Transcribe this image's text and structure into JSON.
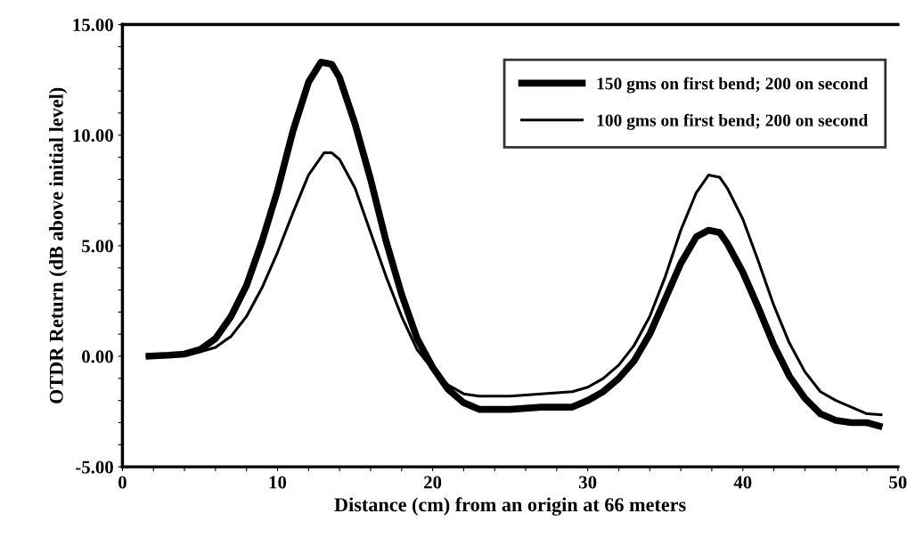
{
  "chart_data": {
    "type": "line",
    "xlabel": "Distance (cm) from an origin at 66 meters",
    "ylabel": "OTDR Return (dB above initial level)",
    "xlim": [
      0,
      50
    ],
    "ylim": [
      -5,
      15
    ],
    "xticks": [
      0,
      {
        "value": 2,
        "label": null
      },
      {
        "value": 4,
        "label": null
      },
      {
        "value": 6,
        "label": null
      },
      {
        "value": 8,
        "label": null
      },
      10,
      {
        "value": 12,
        "label": null
      },
      {
        "value": 14,
        "label": null
      },
      {
        "value": 16,
        "label": null
      },
      {
        "value": 18,
        "label": null
      },
      20,
      {
        "value": 22,
        "label": null
      },
      {
        "value": 24,
        "label": null
      },
      {
        "value": 26,
        "label": null
      },
      {
        "value": 28,
        "label": null
      },
      30,
      {
        "value": 32,
        "label": null
      },
      {
        "value": 34,
        "label": null
      },
      {
        "value": 36,
        "label": null
      },
      {
        "value": 38,
        "label": null
      },
      40,
      {
        "value": 42,
        "label": null
      },
      {
        "value": 44,
        "label": null
      },
      {
        "value": 46,
        "label": null
      },
      {
        "value": 48,
        "label": null
      },
      50
    ],
    "yticks": [
      {
        "value": -5,
        "label": "-5.00"
      },
      {
        "value": -4,
        "label": null
      },
      {
        "value": -3,
        "label": null
      },
      {
        "value": -2,
        "label": null
      },
      {
        "value": -1,
        "label": null
      },
      {
        "value": 0,
        "label": "0.00"
      },
      {
        "value": 1,
        "label": null
      },
      {
        "value": 2,
        "label": null
      },
      {
        "value": 3,
        "label": null
      },
      {
        "value": 4,
        "label": null
      },
      {
        "value": 5,
        "label": "5.00"
      },
      {
        "value": 6,
        "label": null
      },
      {
        "value": 7,
        "label": null
      },
      {
        "value": 8,
        "label": null
      },
      {
        "value": 9,
        "label": null
      },
      {
        "value": 10,
        "label": "10.00"
      },
      {
        "value": 11,
        "label": null
      },
      {
        "value": 12,
        "label": null
      },
      {
        "value": 13,
        "label": null
      },
      {
        "value": 14,
        "label": null
      },
      {
        "value": 15,
        "label": "15.00"
      }
    ],
    "grid": false,
    "legend": "top right",
    "marker": "none",
    "line_style": "solid",
    "series": [
      {
        "name": "150 gms on first bend; 200 on second",
        "color": "#000000",
        "x": [
          1.5,
          3,
          4,
          5,
          6,
          7,
          8,
          9,
          10,
          11,
          12,
          12.8,
          13.5,
          14,
          15,
          16,
          17,
          18,
          19,
          20,
          21,
          22,
          23,
          25,
          27,
          29,
          30,
          31,
          32,
          33,
          34,
          35,
          36,
          37,
          37.8,
          38.5,
          39,
          40,
          41,
          42,
          43,
          44,
          45,
          46,
          47,
          48,
          48.5,
          49
        ],
        "values": [
          0,
          0.05,
          0.1,
          0.3,
          0.8,
          1.8,
          3.2,
          5.2,
          7.5,
          10.2,
          12.4,
          13.3,
          13.2,
          12.6,
          10.5,
          8,
          5.2,
          2.8,
          0.8,
          -0.5,
          -1.5,
          -2.1,
          -2.4,
          -2.4,
          -2.3,
          -2.3,
          -2,
          -1.6,
          -1,
          -0.2,
          1,
          2.6,
          4.2,
          5.4,
          5.7,
          5.6,
          5.1,
          3.8,
          2.2,
          0.5,
          -0.9,
          -1.9,
          -2.6,
          -2.9,
          -3,
          -3,
          -3.1,
          -3.2
        ]
      },
      {
        "name": "100 gms on first bend; 200 on second",
        "color": "#000000",
        "x": [
          1.5,
          3,
          4,
          5,
          6,
          7,
          8,
          9,
          10,
          11,
          12,
          13,
          13.5,
          14,
          15,
          16,
          17,
          18,
          19,
          20,
          21,
          22,
          23,
          25,
          27,
          29,
          30,
          31,
          32,
          33,
          34,
          35,
          36,
          37,
          37.8,
          38.5,
          39,
          40,
          41,
          42,
          43,
          44,
          45,
          46,
          47,
          48,
          49
        ],
        "values": [
          0,
          0.05,
          0.1,
          0.2,
          0.4,
          0.9,
          1.8,
          3.1,
          4.7,
          6.5,
          8.2,
          9.2,
          9.2,
          8.9,
          7.6,
          5.6,
          3.6,
          1.8,
          0.3,
          -0.6,
          -1.3,
          -1.7,
          -1.8,
          -1.8,
          -1.7,
          -1.6,
          -1.4,
          -1,
          -0.4,
          0.5,
          1.8,
          3.6,
          5.7,
          7.4,
          8.2,
          8.1,
          7.6,
          6.2,
          4.3,
          2.3,
          0.6,
          -0.7,
          -1.6,
          -2,
          -2.3,
          -2.6,
          -2.65
        ]
      }
    ]
  }
}
